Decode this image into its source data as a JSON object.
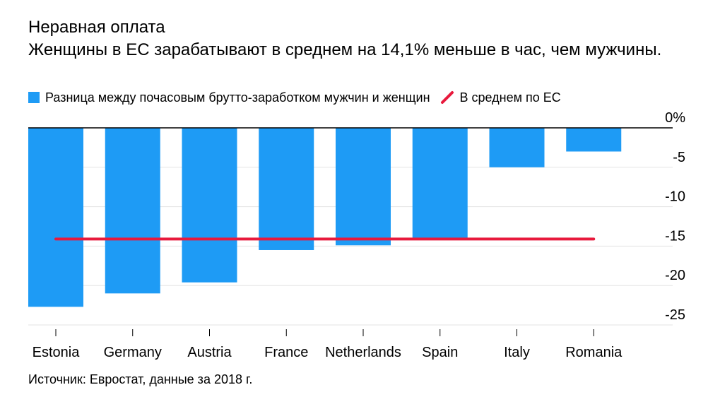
{
  "title": "Неравная оплата",
  "subtitle": "Женщины в ЕС зарабатывают в среднем на 14,1% меньше в час, чем мужчины.",
  "legend": {
    "bars_label": "Разница между почасовым брутто-заработком мужчин и женщин",
    "line_label": "В среднем по ЕС"
  },
  "source": "Источник: Евростат, данные за 2018 г.",
  "colors": {
    "bar": "#1e9bf5",
    "average_line": "#e8193c",
    "grid": "#e3e3e3"
  },
  "chart_data": {
    "type": "bar",
    "categories": [
      "Estonia",
      "Germany",
      "Austria",
      "France",
      "Netherlands",
      "Spain",
      "Italy",
      "Romania"
    ],
    "values": [
      -22.7,
      -21.0,
      -19.6,
      -15.5,
      -14.9,
      -14.1,
      -5.0,
      -3.0
    ],
    "average": {
      "value": -14.1,
      "label": "В среднем по ЕС"
    },
    "y_ticks": [
      {
        "value": 0,
        "label": "0%"
      },
      {
        "value": -5,
        "label": "-5"
      },
      {
        "value": -10,
        "label": "-10"
      },
      {
        "value": -15,
        "label": "-15"
      },
      {
        "value": -20,
        "label": "-20"
      },
      {
        "value": -25,
        "label": "-25"
      }
    ],
    "ylim": [
      -25,
      0
    ],
    "grid": true,
    "axis_side": "right"
  }
}
